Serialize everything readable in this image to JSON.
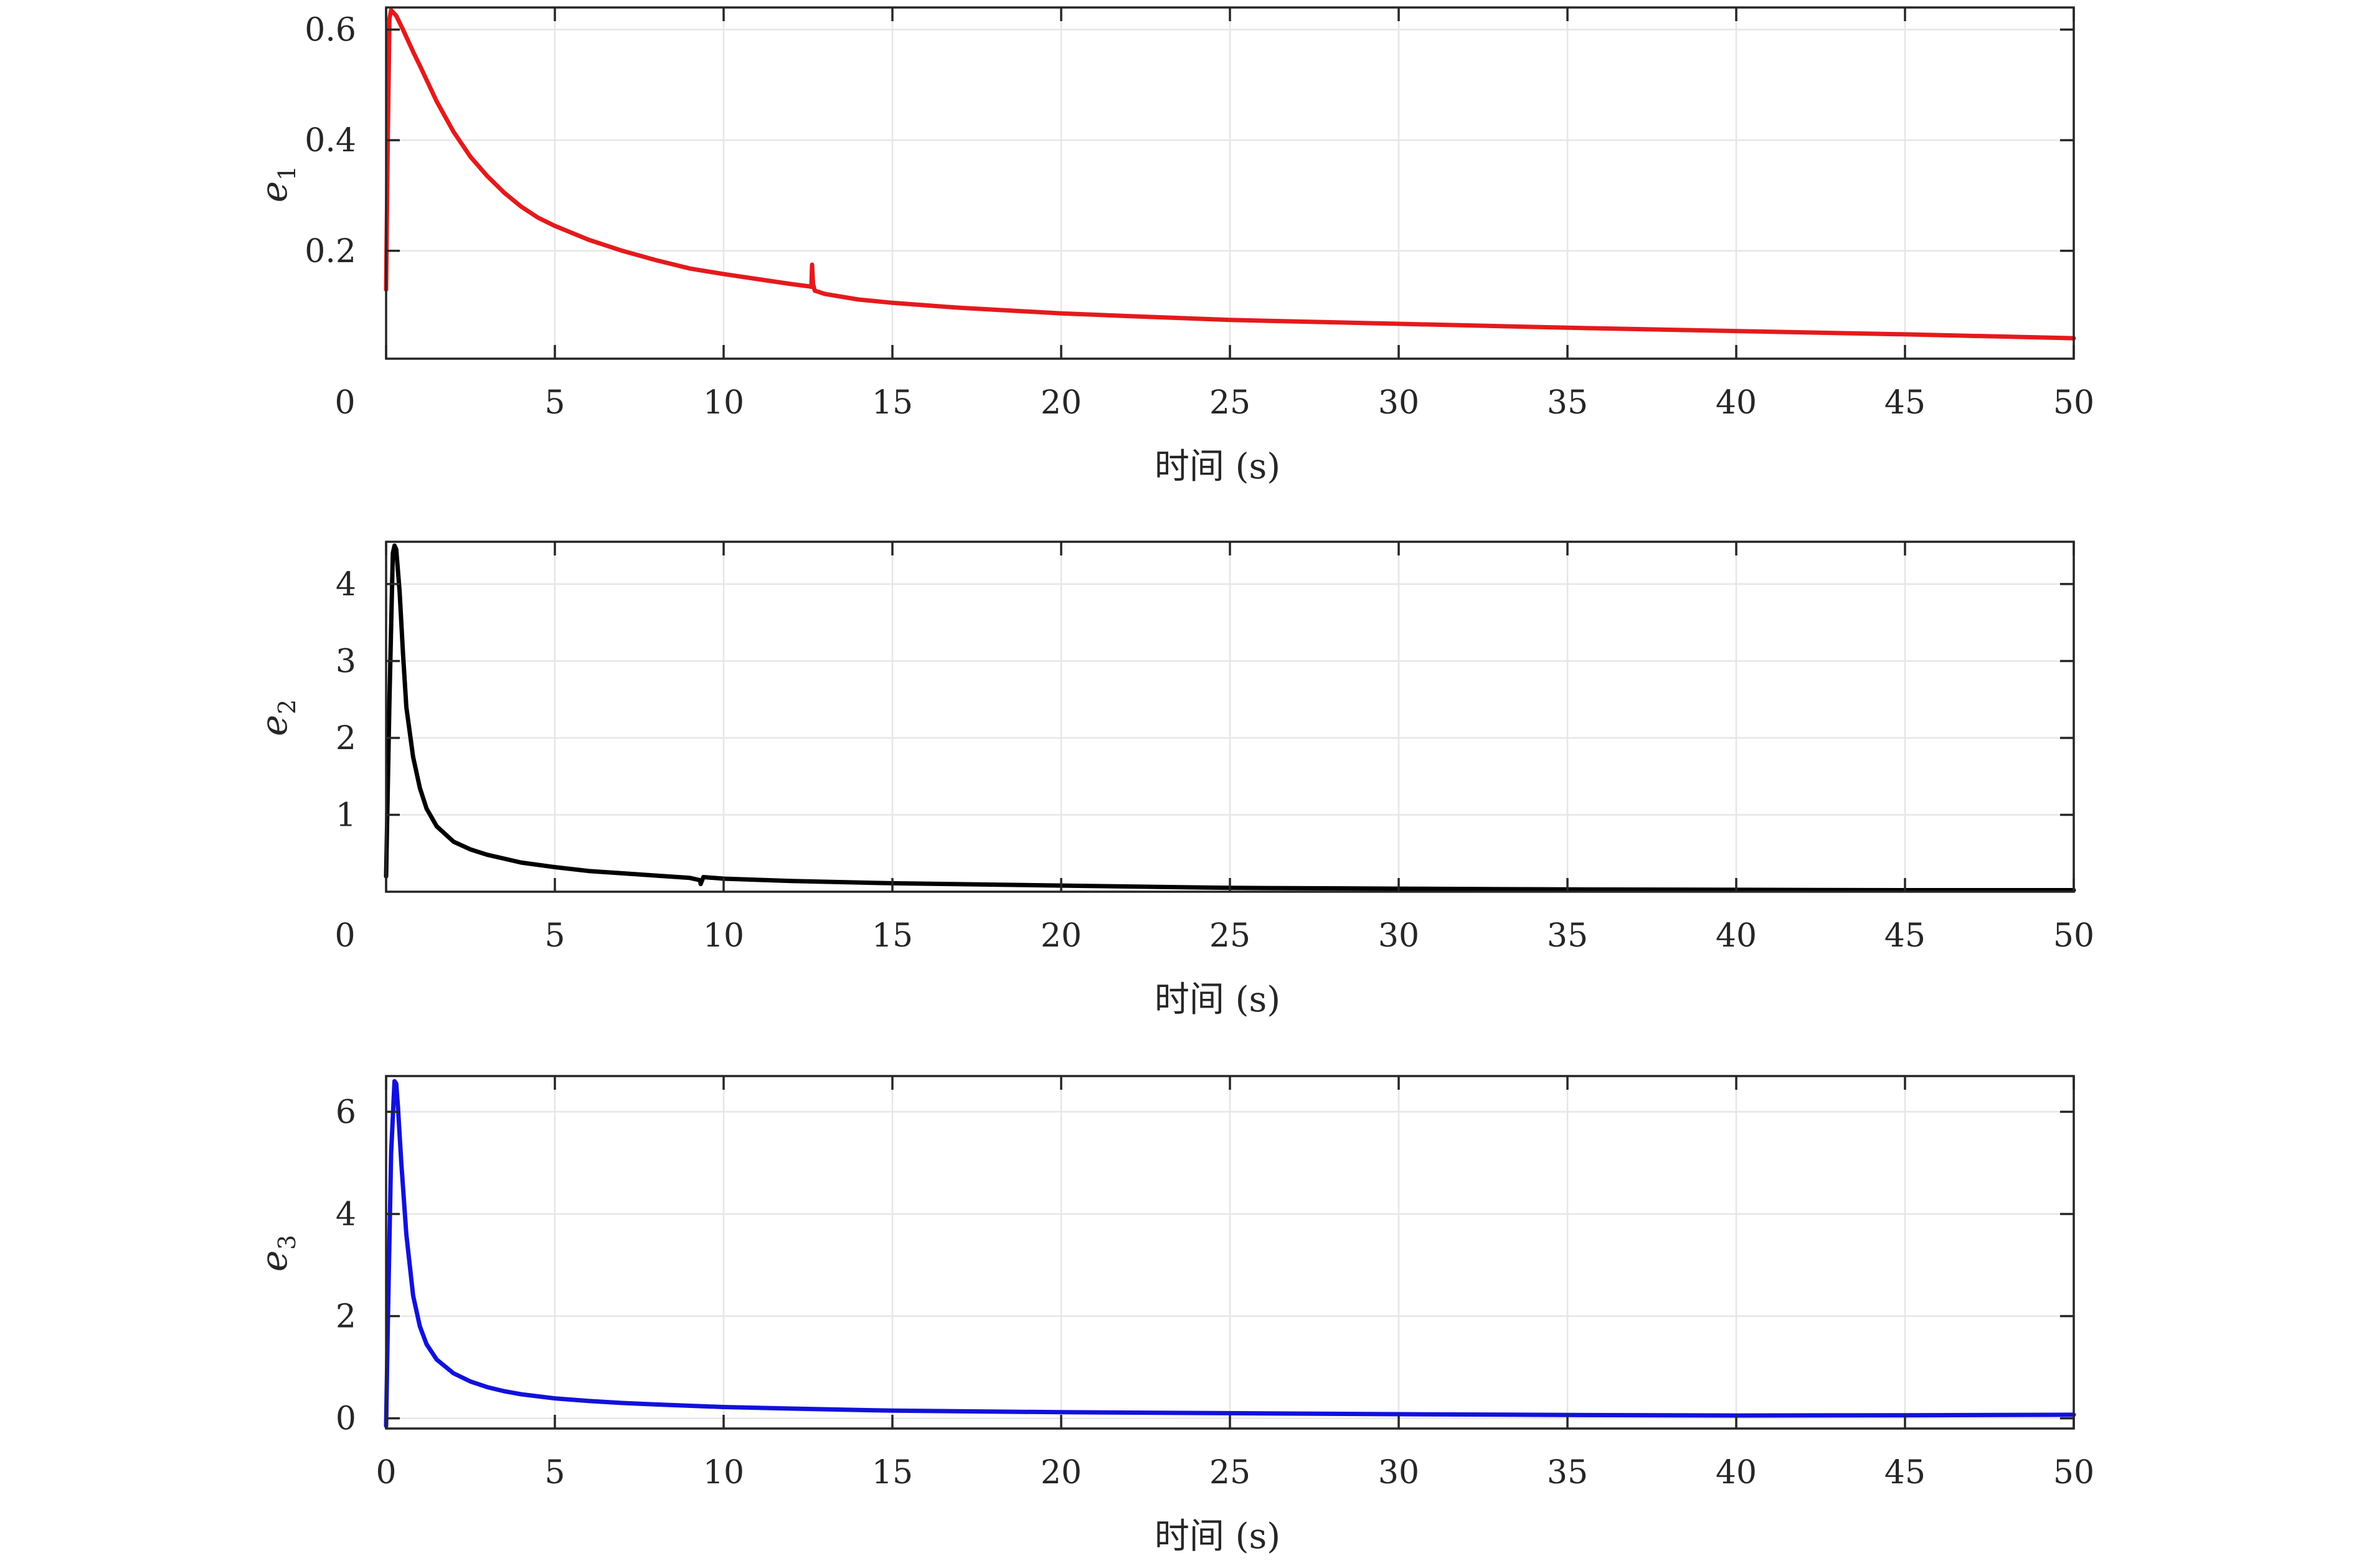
{
  "chart_data": [
    {
      "type": "line",
      "title": "",
      "xlabel": "时间 (s)",
      "ylabel": {
        "base": "e",
        "sub": "1"
      },
      "xlim": [
        0,
        50
      ],
      "ylim": [
        0.005,
        0.64
      ],
      "xticks": [
        0,
        5,
        10,
        15,
        20,
        25,
        30,
        35,
        40,
        45,
        50
      ],
      "yticks": [
        0.2,
        0.4,
        0.6
      ],
      "ytick_labels": [
        "0.2",
        "0.4",
        "0.6"
      ],
      "grid": true,
      "legend": "none",
      "series": [
        {
          "color": "#e41a1c",
          "x": [
            0,
            0.05,
            0.1,
            0.15,
            0.3,
            0.5,
            0.8,
            1,
            1.5,
            2,
            2.5,
            3,
            3.5,
            4,
            4.5,
            5,
            6,
            7,
            8,
            9,
            10,
            11,
            12,
            12.5,
            12.6,
            12.62,
            12.65,
            12.7,
            12.8,
            13,
            14,
            15,
            17,
            20,
            22,
            25,
            30,
            35,
            40,
            45,
            50
          ],
          "y": [
            0.13,
            0.4,
            0.62,
            0.635,
            0.625,
            0.6,
            0.56,
            0.535,
            0.47,
            0.415,
            0.37,
            0.335,
            0.305,
            0.28,
            0.26,
            0.245,
            0.22,
            0.2,
            0.183,
            0.168,
            0.158,
            0.149,
            0.14,
            0.136,
            0.135,
            0.175,
            0.14,
            0.128,
            0.126,
            0.122,
            0.112,
            0.106,
            0.097,
            0.087,
            0.082,
            0.075,
            0.068,
            0.061,
            0.055,
            0.049,
            0.042
          ]
        }
      ]
    },
    {
      "type": "line",
      "title": "",
      "xlabel": "时间 (s)",
      "ylabel": {
        "base": "e",
        "sub": "2"
      },
      "xlim": [
        0,
        50
      ],
      "ylim": [
        0,
        4.55
      ],
      "xticks": [
        0,
        5,
        10,
        15,
        20,
        25,
        30,
        35,
        40,
        45,
        50
      ],
      "yticks": [
        1,
        2,
        3,
        4
      ],
      "ytick_labels": [
        "1",
        "2",
        "3",
        "4"
      ],
      "grid": true,
      "legend": "none",
      "series": [
        {
          "color": "#000000",
          "x": [
            0,
            0.1,
            0.2,
            0.25,
            0.3,
            0.4,
            0.5,
            0.6,
            0.8,
            1,
            1.2,
            1.5,
            2,
            2.5,
            3,
            3.5,
            4,
            5,
            6,
            7,
            8,
            9,
            9.3,
            9.32,
            9.4,
            10,
            12,
            15,
            20,
            25,
            30,
            35,
            40,
            45,
            50
          ],
          "y": [
            0.2,
            2.5,
            4.4,
            4.5,
            4.45,
            3.9,
            3.1,
            2.4,
            1.75,
            1.35,
            1.08,
            0.85,
            0.65,
            0.55,
            0.48,
            0.43,
            0.38,
            0.32,
            0.27,
            0.24,
            0.21,
            0.18,
            0.15,
            0.1,
            0.19,
            0.17,
            0.14,
            0.11,
            0.08,
            0.05,
            0.04,
            0.03,
            0.025,
            0.02,
            0.02
          ]
        }
      ]
    },
    {
      "type": "line",
      "title": "",
      "xlabel": "时间 (s)",
      "ylabel": {
        "base": "e",
        "sub": "3"
      },
      "xlim": [
        0,
        50
      ],
      "ylim": [
        -0.2,
        6.7
      ],
      "xticks": [
        0,
        5,
        10,
        15,
        20,
        25,
        30,
        35,
        40,
        45,
        50
      ],
      "yticks": [
        0,
        2,
        4,
        6
      ],
      "ytick_labels": [
        "0",
        "2",
        "4",
        "6"
      ],
      "grid": true,
      "legend": "none",
      "series": [
        {
          "color": "#1111dd",
          "x": [
            0,
            0.05,
            0.15,
            0.25,
            0.3,
            0.35,
            0.45,
            0.6,
            0.8,
            1,
            1.2,
            1.5,
            2,
            2.5,
            3,
            3.5,
            4,
            5,
            6,
            7,
            8,
            10,
            12,
            15,
            20,
            25,
            30,
            35,
            40,
            45,
            50
          ],
          "y": [
            -0.15,
            1.8,
            5.2,
            6.6,
            6.55,
            6.1,
            5.0,
            3.6,
            2.4,
            1.8,
            1.45,
            1.15,
            0.88,
            0.72,
            0.61,
            0.53,
            0.47,
            0.39,
            0.34,
            0.3,
            0.27,
            0.22,
            0.19,
            0.15,
            0.12,
            0.1,
            0.08,
            0.065,
            0.055,
            0.06,
            0.07
          ]
        }
      ]
    }
  ]
}
